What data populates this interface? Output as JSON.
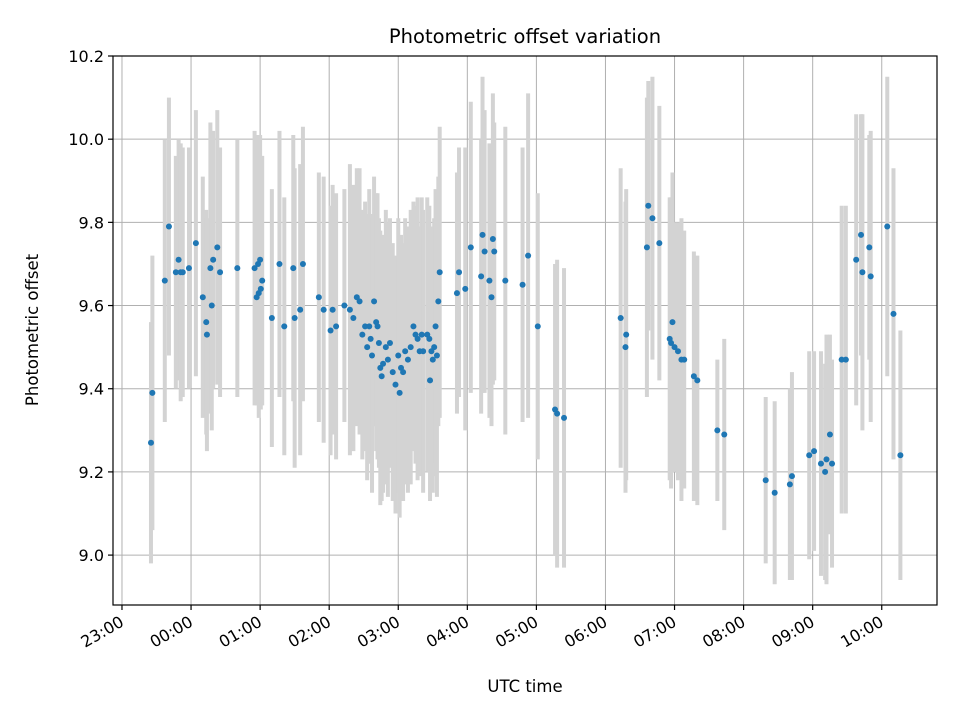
{
  "chart_data": {
    "type": "scatter",
    "title": "Photometric offset variation",
    "xlabel": "UTC time",
    "ylabel": "Photometric offset",
    "ylim": [
      8.88,
      10.2
    ],
    "xlim": [
      -0.13,
      11.8
    ],
    "grid": true,
    "x_unit": "hours since 23:00 UTC",
    "xticks": [
      {
        "v": 0,
        "label": "23:00"
      },
      {
        "v": 1,
        "label": "00:00"
      },
      {
        "v": 2,
        "label": "01:00"
      },
      {
        "v": 3,
        "label": "02:00"
      },
      {
        "v": 4,
        "label": "03:00"
      },
      {
        "v": 5,
        "label": "04:00"
      },
      {
        "v": 6,
        "label": "05:00"
      },
      {
        "v": 7,
        "label": "06:00"
      },
      {
        "v": 8,
        "label": "07:00"
      },
      {
        "v": 9,
        "label": "08:00"
      },
      {
        "v": 10,
        "label": "09:00"
      },
      {
        "v": 11,
        "label": "10:00"
      }
    ],
    "yticks": [
      {
        "v": 9.0,
        "label": "9.0"
      },
      {
        "v": 9.2,
        "label": "9.2"
      },
      {
        "v": 9.4,
        "label": "9.4"
      },
      {
        "v": 9.6,
        "label": "9.6"
      },
      {
        "v": 9.8,
        "label": "9.8"
      },
      {
        "v": 10.0,
        "label": "10.0"
      },
      {
        "v": 10.2,
        "label": "10.2"
      }
    ],
    "colors": {
      "point": "#1f77b4",
      "errorbar": "#d3d3d3",
      "grid": "#b0b0b0"
    },
    "series": [
      {
        "name": "offset",
        "points": [
          [
            0.42,
            9.27,
            0.29
          ],
          [
            0.44,
            9.39,
            0.33
          ],
          [
            0.62,
            9.66,
            0.34
          ],
          [
            0.68,
            9.79,
            0.31
          ],
          [
            0.78,
            9.68,
            0.28
          ],
          [
            0.82,
            9.71,
            0.29
          ],
          [
            0.85,
            9.68,
            0.31
          ],
          [
            0.88,
            9.68,
            0.3
          ],
          [
            0.97,
            9.69,
            0.29
          ],
          [
            1.07,
            9.75,
            0.32
          ],
          [
            1.17,
            9.62,
            0.29
          ],
          [
            1.22,
            9.56,
            0.27
          ],
          [
            1.23,
            9.53,
            0.28
          ],
          [
            1.28,
            9.69,
            0.35
          ],
          [
            1.3,
            9.6,
            0.3
          ],
          [
            1.32,
            9.71,
            0.31
          ],
          [
            1.38,
            9.74,
            0.33
          ],
          [
            1.42,
            9.68,
            0.3
          ],
          [
            1.67,
            9.69,
            0.31
          ],
          [
            1.92,
            9.69,
            0.33
          ],
          [
            1.95,
            9.62,
            0.26
          ],
          [
            1.97,
            9.7,
            0.31
          ],
          [
            1.98,
            9.63,
            0.3
          ],
          [
            2.0,
            9.71,
            0.3
          ],
          [
            2.01,
            9.64,
            0.29
          ],
          [
            2.03,
            9.66,
            0.3
          ],
          [
            2.17,
            9.57,
            0.31
          ],
          [
            2.28,
            9.7,
            0.32
          ],
          [
            2.35,
            9.55,
            0.31
          ],
          [
            2.48,
            9.69,
            0.32
          ],
          [
            2.5,
            9.57,
            0.36
          ],
          [
            2.58,
            9.59,
            0.35
          ],
          [
            2.62,
            9.7,
            0.33
          ],
          [
            2.85,
            9.62,
            0.3
          ],
          [
            2.92,
            9.59,
            0.32
          ],
          [
            3.02,
            9.54,
            0.3
          ],
          [
            3.05,
            9.59,
            0.3
          ],
          [
            3.1,
            9.55,
            0.32
          ],
          [
            3.22,
            9.6,
            0.28
          ],
          [
            3.3,
            9.59,
            0.35
          ],
          [
            3.35,
            9.57,
            0.32
          ],
          [
            3.4,
            9.62,
            0.31
          ],
          [
            3.44,
            9.61,
            0.32
          ],
          [
            3.48,
            9.53,
            0.3
          ],
          [
            3.52,
            9.55,
            0.3
          ],
          [
            3.55,
            9.5,
            0.32
          ],
          [
            3.58,
            9.55,
            0.33
          ],
          [
            3.6,
            9.52,
            0.3
          ],
          [
            3.62,
            9.48,
            0.33
          ],
          [
            3.65,
            9.61,
            0.3
          ],
          [
            3.68,
            9.56,
            0.31
          ],
          [
            3.7,
            9.55,
            0.32
          ],
          [
            3.72,
            9.51,
            0.3
          ],
          [
            3.74,
            9.45,
            0.33
          ],
          [
            3.76,
            9.43,
            0.3
          ],
          [
            3.78,
            9.46,
            0.31
          ],
          [
            3.82,
            9.5,
            0.33
          ],
          [
            3.85,
            9.47,
            0.33
          ],
          [
            3.88,
            9.51,
            0.3
          ],
          [
            3.92,
            9.44,
            0.31
          ],
          [
            3.96,
            9.41,
            0.31
          ],
          [
            4.0,
            9.48,
            0.33
          ],
          [
            4.02,
            9.39,
            0.3
          ],
          [
            4.04,
            9.45,
            0.32
          ],
          [
            4.07,
            9.44,
            0.31
          ],
          [
            4.1,
            9.49,
            0.32
          ],
          [
            4.14,
            9.47,
            0.32
          ],
          [
            4.18,
            9.5,
            0.33
          ],
          [
            4.22,
            9.55,
            0.3
          ],
          [
            4.25,
            9.53,
            0.31
          ],
          [
            4.28,
            9.52,
            0.34
          ],
          [
            4.31,
            9.49,
            0.3
          ],
          [
            4.34,
            9.53,
            0.33
          ],
          [
            4.36,
            9.49,
            0.34
          ],
          [
            4.42,
            9.53,
            0.33
          ],
          [
            4.45,
            9.52,
            0.32
          ],
          [
            4.46,
            9.42,
            0.29
          ],
          [
            4.48,
            9.49,
            0.3
          ],
          [
            4.5,
            9.47,
            0.32
          ],
          [
            4.52,
            9.5,
            0.31
          ],
          [
            4.54,
            9.55,
            0.33
          ],
          [
            4.56,
            9.48,
            0.34
          ],
          [
            4.58,
            9.61,
            0.3
          ],
          [
            4.6,
            9.68,
            0.35
          ],
          [
            4.85,
            9.63,
            0.29
          ],
          [
            4.88,
            9.68,
            0.3
          ],
          [
            4.97,
            9.64,
            0.34
          ],
          [
            5.05,
            9.74,
            0.35
          ],
          [
            5.2,
            9.67,
            0.33
          ],
          [
            5.22,
            9.77,
            0.38
          ],
          [
            5.25,
            9.73,
            0.34
          ],
          [
            5.32,
            9.66,
            0.33
          ],
          [
            5.35,
            9.62,
            0.31
          ],
          [
            5.37,
            9.76,
            0.35
          ],
          [
            5.39,
            9.73,
            0.31
          ],
          [
            5.55,
            9.66,
            0.37
          ],
          [
            5.8,
            9.65,
            0.33
          ],
          [
            5.88,
            9.72,
            0.39
          ],
          [
            6.02,
            9.55,
            0.32
          ],
          [
            6.27,
            9.35,
            0.35
          ],
          [
            6.3,
            9.34,
            0.37
          ],
          [
            6.4,
            9.33,
            0.36
          ],
          [
            7.22,
            9.57,
            0.36
          ],
          [
            7.29,
            9.5,
            0.35
          ],
          [
            7.3,
            9.53,
            0.35
          ],
          [
            7.6,
            9.74,
            0.36
          ],
          [
            7.62,
            9.84,
            0.3
          ],
          [
            7.68,
            9.81,
            0.34
          ],
          [
            7.78,
            9.75,
            0.33
          ],
          [
            7.93,
            9.52,
            0.34
          ],
          [
            7.95,
            9.51,
            0.35
          ],
          [
            7.97,
            9.56,
            0.36
          ],
          [
            8.0,
            9.5,
            0.3
          ],
          [
            8.05,
            9.49,
            0.31
          ],
          [
            8.1,
            9.47,
            0.34
          ],
          [
            8.14,
            9.47,
            0.31
          ],
          [
            8.28,
            9.43,
            0.3
          ],
          [
            8.33,
            9.42,
            0.3
          ],
          [
            8.62,
            9.3,
            0.17
          ],
          [
            8.72,
            9.29,
            0.23
          ],
          [
            9.32,
            9.18,
            0.2
          ],
          [
            9.45,
            9.15,
            0.22
          ],
          [
            9.67,
            9.17,
            0.23
          ],
          [
            9.7,
            9.19,
            0.25
          ],
          [
            9.95,
            9.24,
            0.25
          ],
          [
            10.02,
            9.25,
            0.24
          ],
          [
            10.12,
            9.22,
            0.27
          ],
          [
            10.18,
            9.2,
            0.26
          ],
          [
            10.2,
            9.23,
            0.3
          ],
          [
            10.25,
            9.29,
            0.24
          ],
          [
            10.28,
            9.22,
            0.25
          ],
          [
            10.42,
            9.47,
            0.37
          ],
          [
            10.48,
            9.47,
            0.37
          ],
          [
            10.63,
            9.71,
            0.35
          ],
          [
            10.7,
            9.77,
            0.29
          ],
          [
            10.72,
            9.68,
            0.38
          ],
          [
            10.82,
            9.74,
            0.27
          ],
          [
            10.84,
            9.67,
            0.35
          ],
          [
            11.08,
            9.79,
            0.36
          ],
          [
            11.17,
            9.58,
            0.35
          ],
          [
            11.27,
            9.24,
            0.3
          ]
        ]
      }
    ]
  }
}
